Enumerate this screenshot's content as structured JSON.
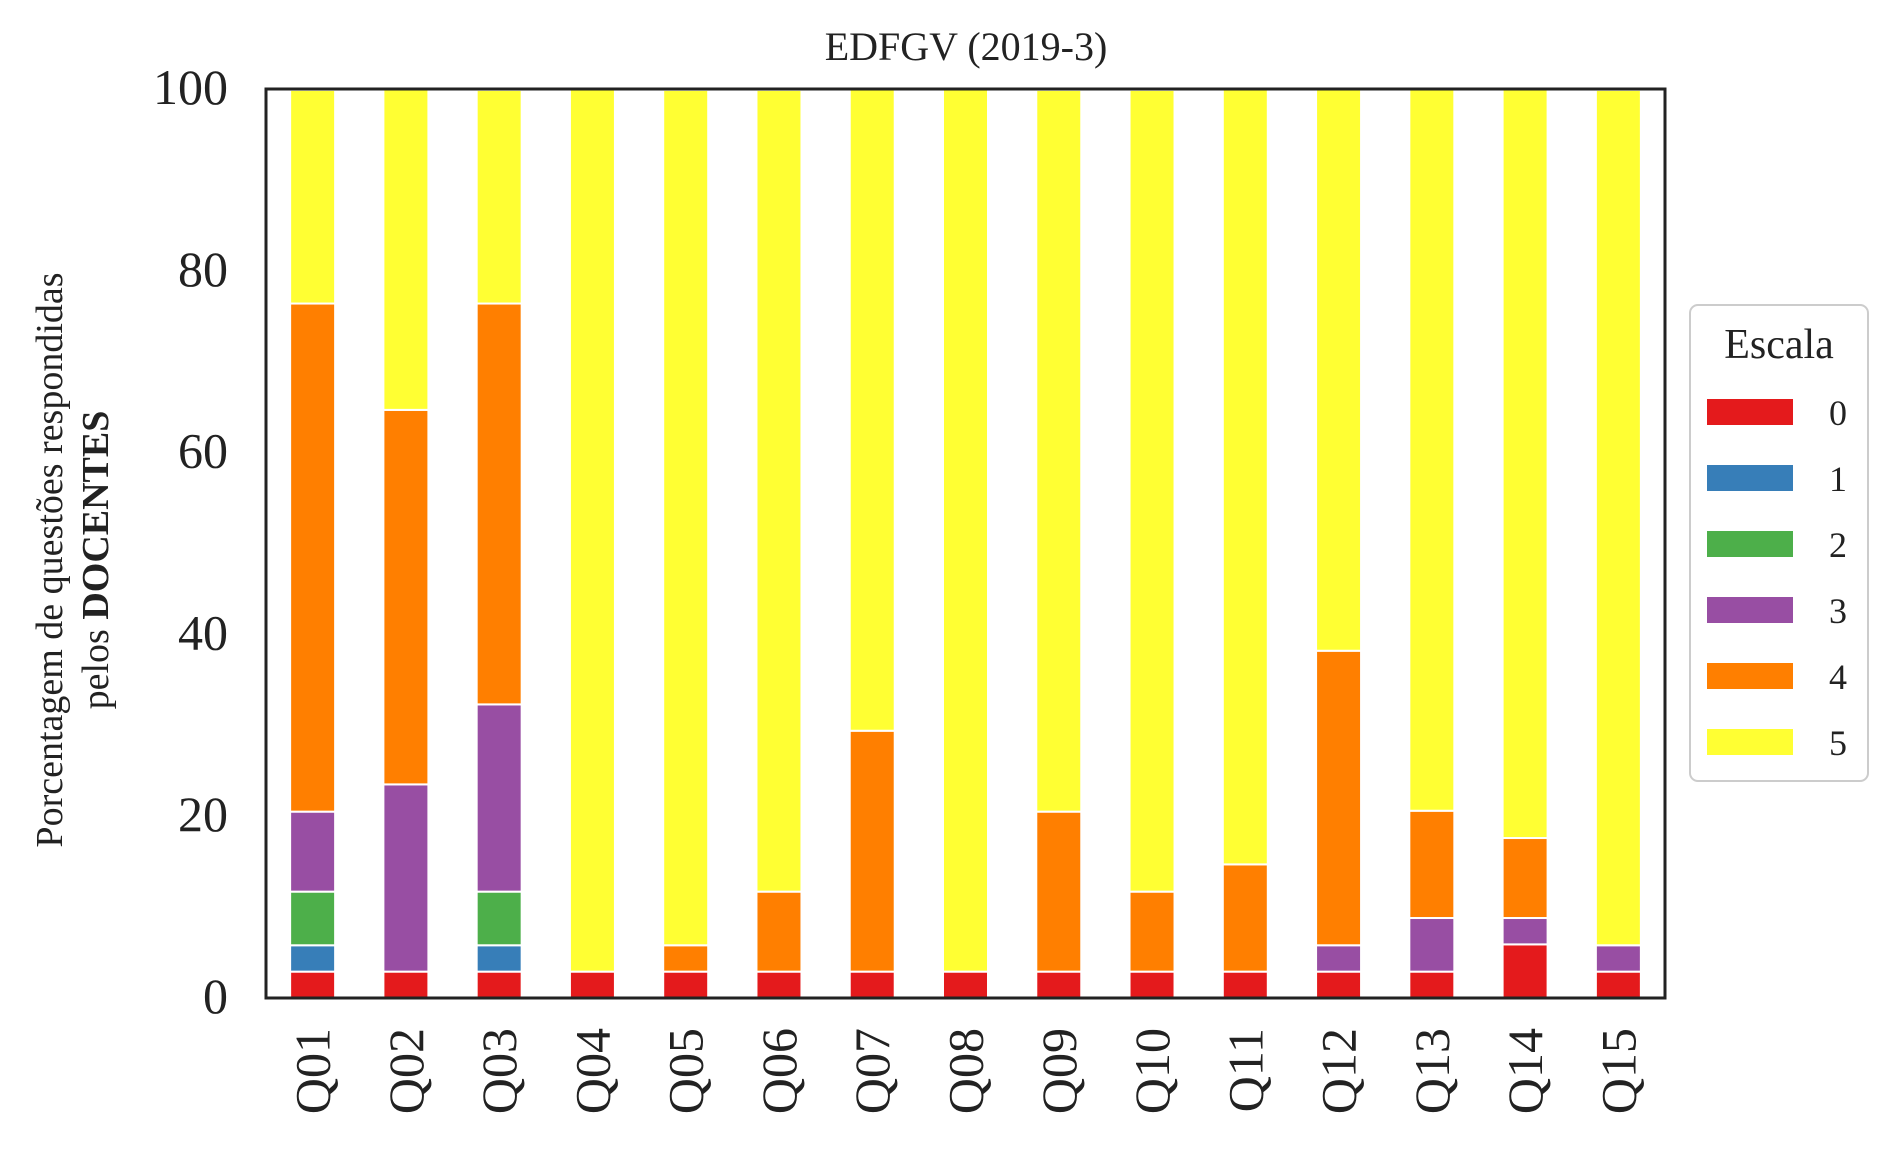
{
  "chart_data": {
    "type": "bar",
    "stacked": true,
    "title": "EDFGV (2019-3)",
    "ylabel_line1": "Porcentagem de questões respondidas",
    "ylabel_line2_prefix": "pelos ",
    "ylabel_line2_bold": "DOCENTES",
    "xlabel": "",
    "ylim": [
      0,
      100
    ],
    "yticks": [
      "0",
      "20",
      "40",
      "60",
      "80",
      "100"
    ],
    "categories": [
      "Q01",
      "Q02",
      "Q03",
      "Q04",
      "Q05",
      "Q06",
      "Q07",
      "Q08",
      "Q09",
      "Q10",
      "Q11",
      "Q12",
      "Q13",
      "Q14",
      "Q15"
    ],
    "legend_title": "Escala",
    "legend_position": "center-right",
    "grid": false,
    "series": [
      {
        "name": "0",
        "color": "#e41a1c",
        "values": [
          2.9,
          2.9,
          2.9,
          2.9,
          2.9,
          2.9,
          2.9,
          2.9,
          2.9,
          2.9,
          2.9,
          2.9,
          2.9,
          5.9,
          2.9
        ]
      },
      {
        "name": "1",
        "color": "#377eb8",
        "values": [
          2.9,
          0,
          2.9,
          0,
          0,
          0,
          0,
          0,
          0,
          0,
          0,
          0,
          0,
          0,
          0
        ]
      },
      {
        "name": "2",
        "color": "#4daf4a",
        "values": [
          5.9,
          0,
          5.9,
          0,
          0,
          0,
          0,
          0,
          0,
          0,
          0,
          0,
          0,
          0,
          0
        ]
      },
      {
        "name": "3",
        "color": "#984ea3",
        "values": [
          8.8,
          20.6,
          20.6,
          0,
          0,
          0,
          0,
          0,
          0,
          0,
          0,
          2.9,
          5.9,
          2.9,
          2.9
        ]
      },
      {
        "name": "4",
        "color": "#ff7f00",
        "values": [
          55.9,
          41.2,
          44.1,
          0,
          2.9,
          8.8,
          26.5,
          0,
          17.6,
          8.8,
          11.8,
          32.4,
          11.8,
          8.8,
          0
        ]
      },
      {
        "name": "5",
        "color": "#ffff33",
        "values": [
          23.5,
          35.3,
          23.5,
          97.1,
          94.1,
          88.2,
          70.6,
          97.1,
          79.4,
          88.2,
          85.3,
          61.8,
          79.4,
          82.4,
          94.1
        ]
      }
    ]
  }
}
